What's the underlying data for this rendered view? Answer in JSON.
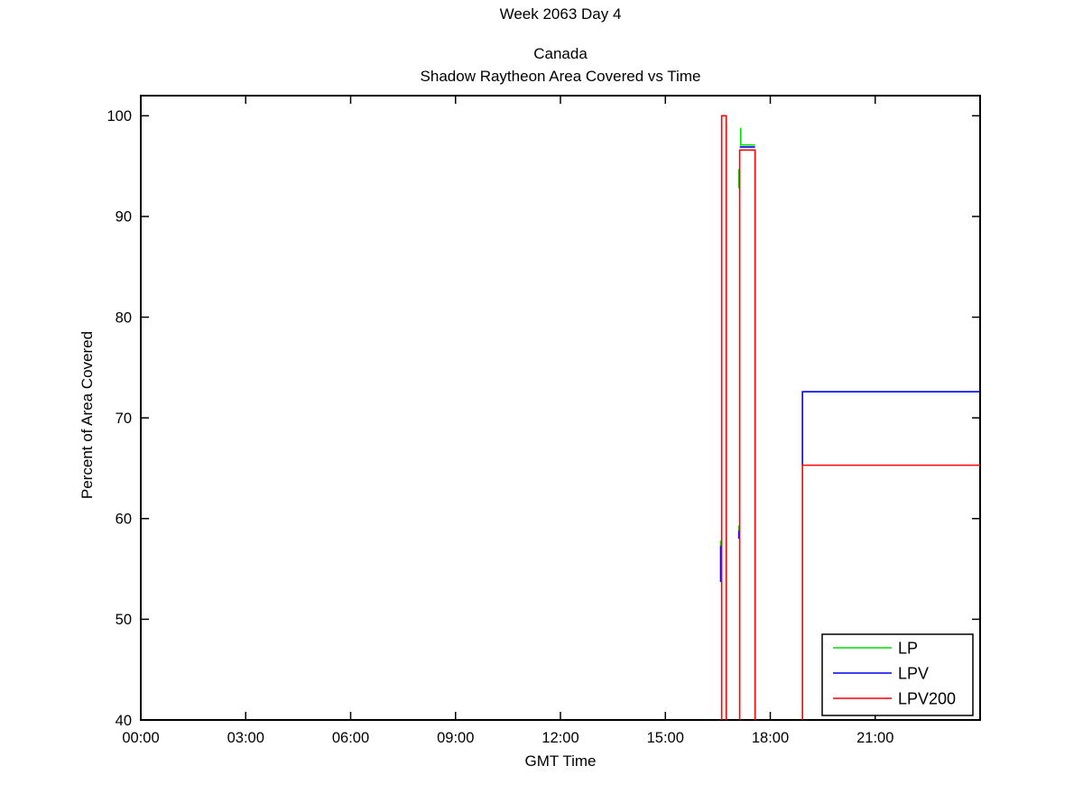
{
  "figure": {
    "background": "#ffffff",
    "text_color": "#000000"
  },
  "chart_data": {
    "type": "line",
    "suptitle": "Week 2063 Day 4",
    "title_lines": [
      "Canada",
      "Shadow Raytheon Area Covered vs Time"
    ],
    "xlabel": "GMT Time",
    "ylabel": "Percent of Area Covered",
    "xlim": [
      0,
      24
    ],
    "ylim": [
      40,
      102
    ],
    "grid": false,
    "axis_color": "#000000",
    "xticks": [
      {
        "v": 0,
        "label": "00:00"
      },
      {
        "v": 3,
        "label": "03:00"
      },
      {
        "v": 6,
        "label": "06:00"
      },
      {
        "v": 9,
        "label": "09:00"
      },
      {
        "v": 12,
        "label": "12:00"
      },
      {
        "v": 15,
        "label": "15:00"
      },
      {
        "v": 18,
        "label": "18:00"
      },
      {
        "v": 21,
        "label": "21:00"
      }
    ],
    "yticks": [
      {
        "v": 40,
        "label": "40"
      },
      {
        "v": 50,
        "label": "50"
      },
      {
        "v": 60,
        "label": "60"
      },
      {
        "v": 70,
        "label": "70"
      },
      {
        "v": 80,
        "label": "80"
      },
      {
        "v": 90,
        "label": "90"
      },
      {
        "v": 100,
        "label": "100"
      }
    ],
    "legend": {
      "position": "lower right",
      "entries": [
        {
          "name": "LP",
          "color": "#00dd00"
        },
        {
          "name": "LPV",
          "color": "#0000ee"
        },
        {
          "name": "LPV200",
          "color": "#ff0000"
        }
      ]
    },
    "series": [
      {
        "name": "LP",
        "color": "#00dd00",
        "units": "x = GMT hours, y = percent of area covered",
        "segments": [
          [
            [
              16.58,
              57.3
            ],
            [
              16.58,
              57.8
            ]
          ],
          [
            [
              17.1,
              58.8
            ],
            [
              17.1,
              59.3
            ]
          ],
          [
            [
              17.1,
              92.8
            ],
            [
              17.1,
              94.7
            ]
          ],
          [
            [
              17.155,
              98.8
            ],
            [
              17.155,
              97.1
            ],
            [
              17.565,
              97.1
            ]
          ]
        ]
      },
      {
        "name": "LPV",
        "color": "#0000ee",
        "units": "x = GMT hours, y = percent of area covered",
        "segments": [
          [
            [
              16.58,
              53.7
            ],
            [
              16.58,
              57.3
            ]
          ],
          [
            [
              17.1,
              58.0
            ],
            [
              17.1,
              58.8
            ]
          ],
          [
            [
              17.125,
              96.9
            ],
            [
              17.565,
              96.9
            ]
          ],
          [
            [
              18.92,
              65.3
            ],
            [
              18.92,
              72.6
            ],
            [
              24,
              72.6
            ]
          ]
        ]
      },
      {
        "name": "LPV200",
        "color": "#ff0000",
        "units": "x = GMT hours, y = percent of area covered",
        "segments": [
          [
            [
              16.61,
              40
            ],
            [
              16.61,
              100
            ],
            [
              16.74,
              100
            ],
            [
              16.74,
              40
            ]
          ],
          [
            [
              17.125,
              40
            ],
            [
              17.125,
              96.6
            ],
            [
              17.565,
              96.6
            ],
            [
              17.565,
              40
            ]
          ],
          [
            [
              18.92,
              40
            ],
            [
              18.92,
              65.3
            ],
            [
              24,
              65.3
            ]
          ]
        ]
      }
    ]
  }
}
